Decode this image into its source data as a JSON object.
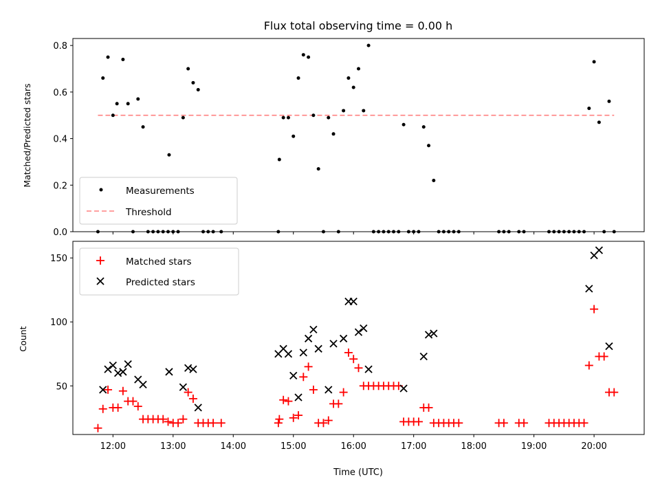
{
  "chart_data": [
    {
      "type": "scatter",
      "title": "Flux total observing time = 0.00 h",
      "xlabel": "",
      "ylabel": "Matched/Predicted stars",
      "xlim": [
        "11:20",
        "20:50"
      ],
      "ylim": [
        0,
        0.83
      ],
      "yticks": [
        0.0,
        0.2,
        0.4,
        0.6,
        0.8
      ],
      "ytick_labels": [
        "0.0",
        "0.2",
        "0.4",
        "0.6",
        "0.8"
      ],
      "xtick_labels_shown": false,
      "legend_position": "lower-left",
      "threshold": {
        "name": "Threshold",
        "value": 0.5,
        "x_range": [
          "11:45",
          "20:20"
        ],
        "color": "#ff8080",
        "style": "dashed"
      },
      "series": [
        {
          "name": "Measurements",
          "marker": "dot",
          "color": "#000000",
          "points": [
            [
              "11:45",
              0.0
            ],
            [
              "11:50",
              0.66
            ],
            [
              "11:55",
              0.75
            ],
            [
              "12:00",
              0.5
            ],
            [
              "12:04",
              0.55
            ],
            [
              "12:10",
              0.74
            ],
            [
              "12:15",
              0.55
            ],
            [
              "12:20",
              0.0
            ],
            [
              "12:25",
              0.57
            ],
            [
              "12:30",
              0.45
            ],
            [
              "12:35",
              0.0
            ],
            [
              "12:40",
              0.0
            ],
            [
              "12:45",
              0.0
            ],
            [
              "12:50",
              0.0
            ],
            [
              "12:55",
              0.0
            ],
            [
              "12:56",
              0.33
            ],
            [
              "13:00",
              0.0
            ],
            [
              "13:05",
              0.0
            ],
            [
              "13:10",
              0.49
            ],
            [
              "13:15",
              0.7
            ],
            [
              "13:20",
              0.64
            ],
            [
              "13:25",
              0.61
            ],
            [
              "13:30",
              0.0
            ],
            [
              "13:35",
              0.0
            ],
            [
              "13:40",
              0.0
            ],
            [
              "13:48",
              0.0
            ],
            [
              "14:45",
              0.0
            ],
            [
              "14:46",
              0.31
            ],
            [
              "14:50",
              0.49
            ],
            [
              "14:55",
              0.49
            ],
            [
              "15:00",
              0.41
            ],
            [
              "15:05",
              0.66
            ],
            [
              "15:10",
              0.76
            ],
            [
              "15:15",
              0.75
            ],
            [
              "15:20",
              0.5
            ],
            [
              "15:25",
              0.27
            ],
            [
              "15:30",
              0.0
            ],
            [
              "15:35",
              0.49
            ],
            [
              "15:40",
              0.42
            ],
            [
              "15:45",
              0.0
            ],
            [
              "15:50",
              0.52
            ],
            [
              "15:55",
              0.66
            ],
            [
              "16:00",
              0.62
            ],
            [
              "16:05",
              0.7
            ],
            [
              "16:10",
              0.52
            ],
            [
              "16:15",
              0.8
            ],
            [
              "16:20",
              0.0
            ],
            [
              "16:25",
              0.0
            ],
            [
              "16:30",
              0.0
            ],
            [
              "16:35",
              0.0
            ],
            [
              "16:40",
              0.0
            ],
            [
              "16:45",
              0.0
            ],
            [
              "16:50",
              0.46
            ],
            [
              "16:55",
              0.0
            ],
            [
              "17:00",
              0.0
            ],
            [
              "17:05",
              0.0
            ],
            [
              "17:10",
              0.45
            ],
            [
              "17:15",
              0.37
            ],
            [
              "17:20",
              0.22
            ],
            [
              "17:25",
              0.0
            ],
            [
              "17:30",
              0.0
            ],
            [
              "17:35",
              0.0
            ],
            [
              "17:40",
              0.0
            ],
            [
              "17:45",
              0.0
            ],
            [
              "18:25",
              0.0
            ],
            [
              "18:30",
              0.0
            ],
            [
              "18:35",
              0.0
            ],
            [
              "18:45",
              0.0
            ],
            [
              "18:50",
              0.0
            ],
            [
              "19:15",
              0.0
            ],
            [
              "19:20",
              0.0
            ],
            [
              "19:25",
              0.0
            ],
            [
              "19:30",
              0.0
            ],
            [
              "19:35",
              0.0
            ],
            [
              "19:40",
              0.0
            ],
            [
              "19:45",
              0.0
            ],
            [
              "19:50",
              0.0
            ],
            [
              "19:55",
              0.53
            ],
            [
              "20:00",
              0.73
            ],
            [
              "20:05",
              0.47
            ],
            [
              "20:10",
              0.0
            ],
            [
              "20:15",
              0.56
            ],
            [
              "20:20",
              0.0
            ]
          ]
        }
      ]
    },
    {
      "type": "scatter",
      "title": "",
      "xlabel": "Time (UTC)",
      "ylabel": "Count",
      "xlim": [
        "11:20",
        "20:50"
      ],
      "ylim": [
        12,
        163
      ],
      "yticks": [
        50,
        100,
        150
      ],
      "ytick_labels": [
        "50",
        "100",
        "150"
      ],
      "xticks": [
        "12:00",
        "13:00",
        "14:00",
        "15:00",
        "16:00",
        "17:00",
        "18:00",
        "19:00",
        "20:00"
      ],
      "xtick_labels": [
        "12:00",
        "13:00",
        "14:00",
        "15:00",
        "16:00",
        "17:00",
        "18:00",
        "19:00",
        "20:00"
      ],
      "legend_position": "upper-left",
      "series": [
        {
          "name": "Matched stars",
          "marker": "plus",
          "color": "#ff0000",
          "points": [
            [
              "11:45",
              17
            ],
            [
              "11:50",
              32
            ],
            [
              "11:55",
              47
            ],
            [
              "12:00",
              33
            ],
            [
              "12:05",
              33
            ],
            [
              "12:10",
              46
            ],
            [
              "12:15",
              38
            ],
            [
              "12:20",
              38
            ],
            [
              "12:25",
              34
            ],
            [
              "12:30",
              24
            ],
            [
              "12:35",
              24
            ],
            [
              "12:40",
              24
            ],
            [
              "12:45",
              24
            ],
            [
              "12:50",
              24
            ],
            [
              "12:55",
              22
            ],
            [
              "13:00",
              21
            ],
            [
              "13:05",
              21
            ],
            [
              "13:10",
              24
            ],
            [
              "13:15",
              45
            ],
            [
              "13:20",
              40
            ],
            [
              "13:25",
              21
            ],
            [
              "13:30",
              21
            ],
            [
              "13:35",
              21
            ],
            [
              "13:40",
              21
            ],
            [
              "13:48",
              21
            ],
            [
              "14:45",
              21
            ],
            [
              "14:46",
              24
            ],
            [
              "14:50",
              39
            ],
            [
              "14:55",
              38
            ],
            [
              "15:00",
              25
            ],
            [
              "15:05",
              27
            ],
            [
              "15:10",
              57
            ],
            [
              "15:15",
              65
            ],
            [
              "15:20",
              47
            ],
            [
              "15:25",
              21
            ],
            [
              "15:30",
              21
            ],
            [
              "15:35",
              23
            ],
            [
              "15:40",
              36
            ],
            [
              "15:45",
              36
            ],
            [
              "15:50",
              45
            ],
            [
              "15:55",
              76
            ],
            [
              "16:00",
              71
            ],
            [
              "16:05",
              64
            ],
            [
              "16:10",
              50
            ],
            [
              "16:15",
              50
            ],
            [
              "16:20",
              50
            ],
            [
              "16:25",
              50
            ],
            [
              "16:30",
              50
            ],
            [
              "16:35",
              50
            ],
            [
              "16:40",
              50
            ],
            [
              "16:45",
              50
            ],
            [
              "16:50",
              22
            ],
            [
              "16:55",
              22
            ],
            [
              "17:00",
              22
            ],
            [
              "17:05",
              22
            ],
            [
              "17:10",
              33
            ],
            [
              "17:15",
              33
            ],
            [
              "17:20",
              21
            ],
            [
              "17:25",
              21
            ],
            [
              "17:30",
              21
            ],
            [
              "17:35",
              21
            ],
            [
              "17:40",
              21
            ],
            [
              "17:45",
              21
            ],
            [
              "18:25",
              21
            ],
            [
              "18:30",
              21
            ],
            [
              "18:45",
              21
            ],
            [
              "18:50",
              21
            ],
            [
              "19:15",
              21
            ],
            [
              "19:20",
              21
            ],
            [
              "19:25",
              21
            ],
            [
              "19:30",
              21
            ],
            [
              "19:35",
              21
            ],
            [
              "19:40",
              21
            ],
            [
              "19:45",
              21
            ],
            [
              "19:50",
              21
            ],
            [
              "19:55",
              66
            ],
            [
              "20:00",
              110
            ],
            [
              "20:05",
              73
            ],
            [
              "20:10",
              73
            ],
            [
              "20:15",
              45
            ],
            [
              "20:20",
              45
            ]
          ]
        },
        {
          "name": "Predicted stars",
          "marker": "x",
          "color": "#000000",
          "points": [
            [
              "11:50",
              47
            ],
            [
              "11:55",
              63
            ],
            [
              "12:00",
              66
            ],
            [
              "12:05",
              60
            ],
            [
              "12:10",
              61
            ],
            [
              "12:15",
              67
            ],
            [
              "12:25",
              55
            ],
            [
              "12:30",
              51
            ],
            [
              "12:56",
              61
            ],
            [
              "13:10",
              49
            ],
            [
              "13:15",
              64
            ],
            [
              "13:20",
              63
            ],
            [
              "13:25",
              33
            ],
            [
              "14:45",
              75
            ],
            [
              "14:50",
              79
            ],
            [
              "14:55",
              75
            ],
            [
              "15:00",
              58
            ],
            [
              "15:05",
              41
            ],
            [
              "15:10",
              76
            ],
            [
              "15:15",
              87
            ],
            [
              "15:20",
              94
            ],
            [
              "15:25",
              79
            ],
            [
              "15:35",
              47
            ],
            [
              "15:40",
              83
            ],
            [
              "15:50",
              87
            ],
            [
              "15:55",
              116
            ],
            [
              "16:00",
              116
            ],
            [
              "16:05",
              92
            ],
            [
              "16:10",
              95
            ],
            [
              "16:15",
              63
            ],
            [
              "16:50",
              48
            ],
            [
              "17:10",
              73
            ],
            [
              "17:15",
              90
            ],
            [
              "17:20",
              91
            ],
            [
              "19:55",
              126
            ],
            [
              "20:00",
              152
            ],
            [
              "20:05",
              156
            ],
            [
              "20:15",
              81
            ]
          ]
        }
      ]
    }
  ]
}
